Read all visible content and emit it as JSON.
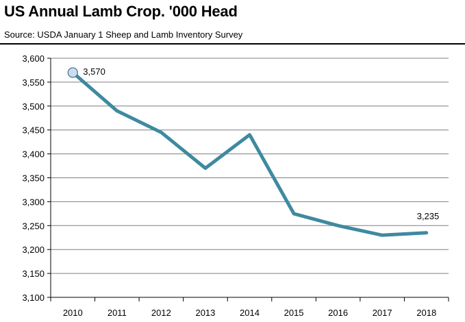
{
  "header": {
    "title": "US Annual Lamb Crop. '000 Head",
    "subtitle": "Source: USDA January 1 Sheep and Lamb Inventory Survey"
  },
  "chart_data": {
    "type": "line",
    "title": "US Annual Lamb Crop. '000 Head",
    "subtitle": "Source: USDA January 1 Sheep and Lamb Inventory Survey",
    "xlabel": "",
    "ylabel": "",
    "categories": [
      "2010",
      "2011",
      "2012",
      "2013",
      "2014",
      "2015",
      "2016",
      "2017",
      "2018"
    ],
    "series": [
      {
        "values": [
          3570,
          3490,
          3445,
          3370,
          3440,
          3275,
          3250,
          3230,
          3235
        ]
      }
    ],
    "ylim": [
      3100,
      3600
    ],
    "yticks": [
      3100,
      3150,
      3200,
      3250,
      3300,
      3350,
      3400,
      3450,
      3500,
      3550,
      3600
    ],
    "ytick_labels": [
      "3,100",
      "3,150",
      "3,200",
      "3,250",
      "3,300",
      "3,350",
      "3,400",
      "3,450",
      "3,500",
      "3,550",
      "3,600"
    ],
    "data_labels": [
      {
        "index": 0,
        "text": "3,570"
      },
      {
        "index": 8,
        "text": "3,235"
      }
    ],
    "grid": true,
    "legend": "none",
    "colors": {
      "line": "#3e8aa0",
      "marker_fill": "#c9dcf0",
      "marker_stroke": "#3e6f8a",
      "grid": "#7f7f7f"
    }
  }
}
